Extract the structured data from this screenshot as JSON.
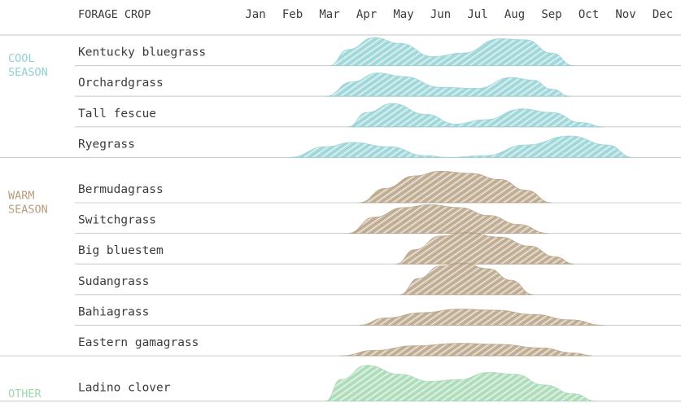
{
  "chart_data": {
    "type": "area",
    "header": {
      "crop_column": "FORAGE CROP"
    },
    "months": [
      "Jan",
      "Feb",
      "Mar",
      "Apr",
      "May",
      "Jun",
      "Jul",
      "Aug",
      "Sep",
      "Oct",
      "Nov",
      "Dec"
    ],
    "value_units": "relative forage growth (0-1), x in months (1 = Jan)",
    "groups": [
      {
        "name": "COOL\nSEASON",
        "color": "#8fd0d3",
        "crops": [
          {
            "name": "Kentucky bluegrass",
            "points": [
              [
                3.0,
                0
              ],
              [
                3.5,
                0.45
              ],
              [
                4.2,
                0.78
              ],
              [
                4.9,
                0.62
              ],
              [
                5.8,
                0.25
              ],
              [
                6.6,
                0.35
              ],
              [
                7.6,
                0.75
              ],
              [
                8.3,
                0.72
              ],
              [
                9.0,
                0.35
              ],
              [
                9.6,
                0
              ]
            ]
          },
          {
            "name": "Orchardgrass",
            "points": [
              [
                2.9,
                0
              ],
              [
                3.6,
                0.4
              ],
              [
                4.3,
                0.65
              ],
              [
                5.0,
                0.55
              ],
              [
                6.0,
                0.25
              ],
              [
                7.0,
                0.22
              ],
              [
                7.9,
                0.52
              ],
              [
                8.5,
                0.45
              ],
              [
                9.0,
                0.2
              ],
              [
                9.5,
                0
              ]
            ]
          },
          {
            "name": "Tall fescue",
            "points": [
              [
                3.5,
                0
              ],
              [
                4.0,
                0.4
              ],
              [
                4.7,
                0.65
              ],
              [
                5.6,
                0.35
              ],
              [
                6.4,
                0.08
              ],
              [
                7.2,
                0.2
              ],
              [
                8.2,
                0.5
              ],
              [
                9.0,
                0.4
              ],
              [
                9.8,
                0.12
              ],
              [
                10.4,
                0
              ]
            ]
          },
          {
            "name": "Ryegrass",
            "points": [
              [
                1.9,
                0
              ],
              [
                2.9,
                0.3
              ],
              [
                3.6,
                0.42
              ],
              [
                4.6,
                0.3
              ],
              [
                5.6,
                0.05
              ],
              [
                6.2,
                0
              ],
              [
                7.2,
                0.05
              ],
              [
                8.3,
                0.35
              ],
              [
                9.5,
                0.6
              ],
              [
                10.5,
                0.35
              ],
              [
                11.2,
                0
              ]
            ]
          }
        ]
      },
      {
        "name": "WARM\nSEASON",
        "color": "#b49d7e",
        "crops": [
          {
            "name": "Bermudagrass",
            "points": [
              [
                3.8,
                0
              ],
              [
                4.5,
                0.4
              ],
              [
                5.3,
                0.75
              ],
              [
                6.0,
                0.88
              ],
              [
                6.8,
                0.82
              ],
              [
                7.6,
                0.65
              ],
              [
                8.3,
                0.35
              ],
              [
                9.0,
                0
              ]
            ]
          },
          {
            "name": "Switchgrass",
            "points": [
              [
                3.5,
                0
              ],
              [
                4.2,
                0.45
              ],
              [
                5.0,
                0.72
              ],
              [
                5.7,
                0.8
              ],
              [
                6.5,
                0.72
              ],
              [
                7.3,
                0.5
              ],
              [
                8.1,
                0.25
              ],
              [
                8.9,
                0
              ]
            ]
          },
          {
            "name": "Big bluestem",
            "points": [
              [
                4.8,
                0
              ],
              [
                5.3,
                0.4
              ],
              [
                6.0,
                0.78
              ],
              [
                6.7,
                0.88
              ],
              [
                7.6,
                0.75
              ],
              [
                8.4,
                0.5
              ],
              [
                9.1,
                0.2
              ],
              [
                9.6,
                0
              ]
            ]
          },
          {
            "name": "Sudangrass",
            "points": [
              [
                4.9,
                0
              ],
              [
                5.4,
                0.45
              ],
              [
                6.0,
                0.8
              ],
              [
                6.6,
                0.88
              ],
              [
                7.3,
                0.72
              ],
              [
                7.9,
                0.4
              ],
              [
                8.5,
                0
              ]
            ]
          },
          {
            "name": "Bahiagrass",
            "points": [
              [
                3.8,
                0
              ],
              [
                4.5,
                0.2
              ],
              [
                5.5,
                0.35
              ],
              [
                6.5,
                0.45
              ],
              [
                7.5,
                0.42
              ],
              [
                8.5,
                0.3
              ],
              [
                9.5,
                0.15
              ],
              [
                10.4,
                0
              ]
            ]
          },
          {
            "name": "Eastern gamagrass",
            "points": [
              [
                3.3,
                0
              ],
              [
                4.2,
                0.15
              ],
              [
                5.3,
                0.28
              ],
              [
                6.5,
                0.35
              ],
              [
                7.6,
                0.32
              ],
              [
                8.7,
                0.22
              ],
              [
                9.6,
                0.08
              ],
              [
                10.1,
                0
              ]
            ]
          }
        ]
      },
      {
        "name": "OTHER",
        "color": "#9fd6ae",
        "crops": [
          {
            "name": "Ladino clover",
            "points": [
              [
                2.9,
                0
              ],
              [
                3.3,
                0.6
              ],
              [
                4.0,
                1.0
              ],
              [
                4.9,
                0.75
              ],
              [
                5.7,
                0.55
              ],
              [
                6.5,
                0.6
              ],
              [
                7.3,
                0.8
              ],
              [
                8.0,
                0.75
              ],
              [
                8.8,
                0.45
              ],
              [
                9.6,
                0.2
              ],
              [
                10.2,
                0
              ]
            ]
          }
        ]
      }
    ]
  }
}
